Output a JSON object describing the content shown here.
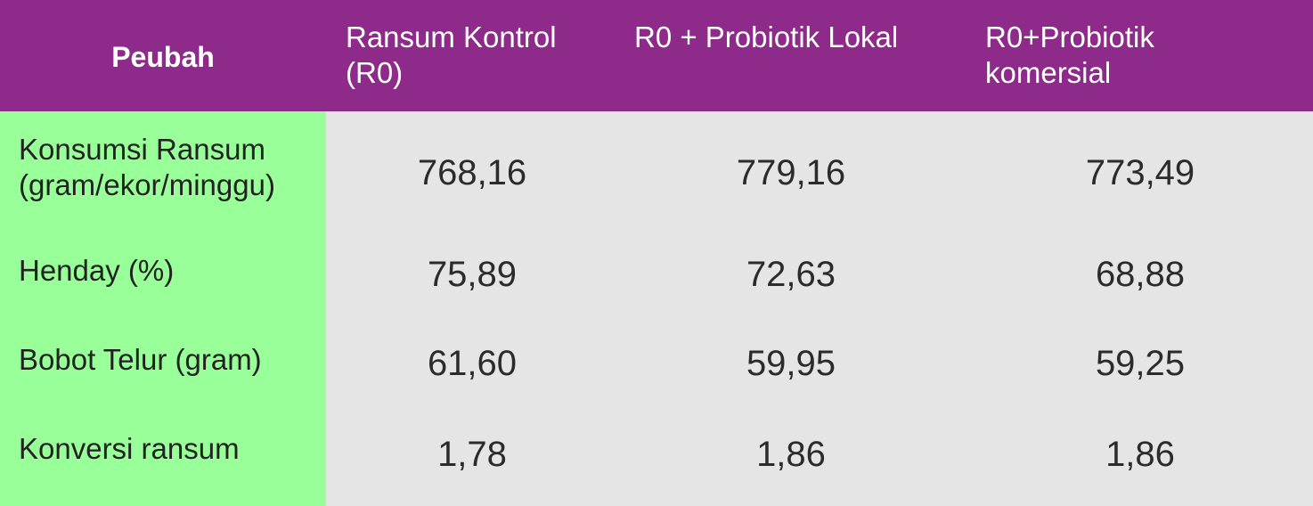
{
  "header": {
    "peubah": "Peubah",
    "col1_line1": "Ransum Kontrol",
    "col1_line2": "(R0)",
    "col2": "R0 + Probiotik Lokal",
    "col3_line1": "R0+Probiotik",
    "col3_line2": "komersial"
  },
  "rows": [
    {
      "label_line1": "Konsumsi Ransum",
      "label_line2": "(gram/ekor/minggu)",
      "values": [
        "768,16",
        "779,16",
        "773,49"
      ]
    },
    {
      "label_line1": "Henday (%)",
      "values": [
        "75,89",
        "72,63",
        "68,88"
      ]
    },
    {
      "label_line1": "Bobot Telur (gram)",
      "values": [
        "61,60",
        "59,95",
        "59,25"
      ]
    },
    {
      "label_line1": "Konversi ransum",
      "values": [
        "1,78",
        "1,86",
        "1,86"
      ]
    }
  ],
  "colors": {
    "header_bg": "#8e2b8a",
    "label_bg": "#99ff99",
    "body_bg": "#e5e5e5"
  }
}
